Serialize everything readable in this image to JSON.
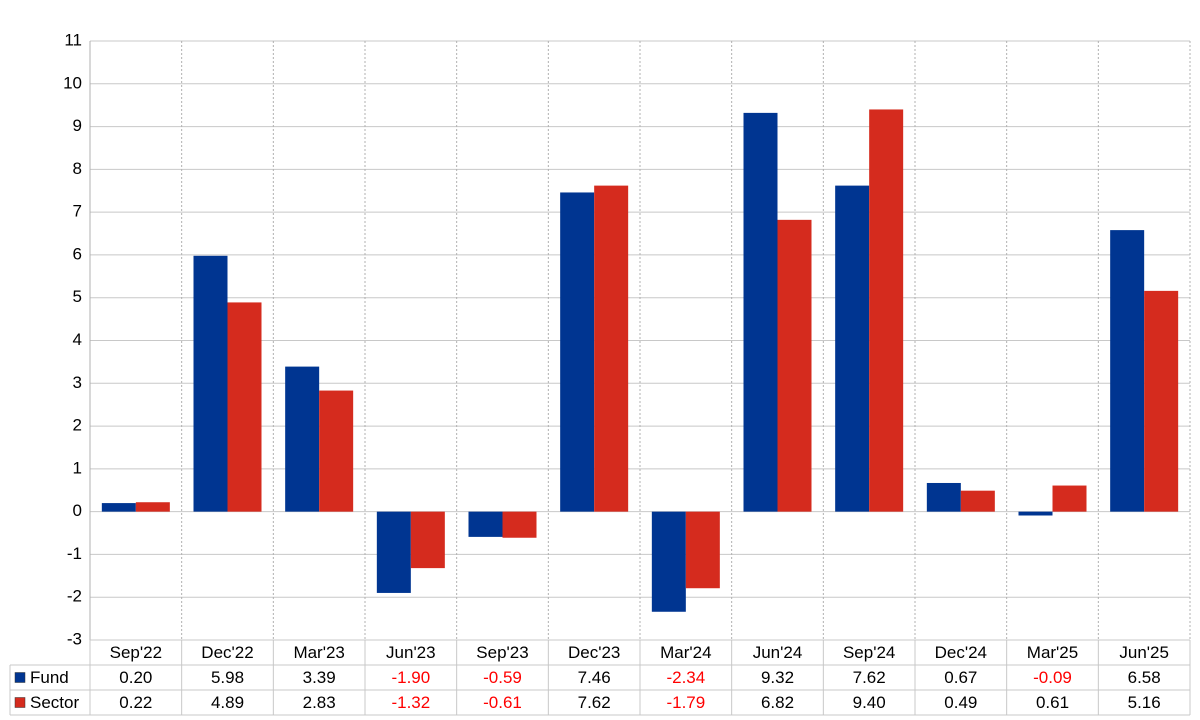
{
  "chart_data": {
    "type": "bar",
    "categories": [
      "Sep'22",
      "Dec'22",
      "Mar'23",
      "Jun'23",
      "Sep'23",
      "Dec'23",
      "Mar'24",
      "Jun'24",
      "Sep'24",
      "Dec'24",
      "Mar'25",
      "Jun'25"
    ],
    "series": [
      {
        "name": "Fund",
        "color": "#003591",
        "values": [
          0.2,
          5.98,
          3.39,
          -1.9,
          -0.59,
          7.46,
          -2.34,
          9.32,
          7.62,
          0.67,
          -0.09,
          6.58
        ],
        "value_labels": [
          "0.20",
          "5.98",
          "3.39",
          "-1.90",
          "-0.59",
          "7.46",
          "-2.34",
          "9.32",
          "7.62",
          "0.67",
          "-0.09",
          "6.58"
        ]
      },
      {
        "name": "Sector",
        "color": "#d52b1e",
        "values": [
          0.22,
          4.89,
          2.83,
          -1.32,
          -0.61,
          7.62,
          -1.79,
          6.82,
          9.4,
          0.49,
          0.61,
          5.16
        ],
        "value_labels": [
          "0.22",
          "4.89",
          "2.83",
          "-1.32",
          "-0.61",
          "7.62",
          "-1.79",
          "6.82",
          "9.40",
          "0.49",
          "0.61",
          "5.16"
        ]
      }
    ],
    "ylim": [
      -3,
      11
    ],
    "yticks": [
      -3,
      -2,
      -1,
      0,
      1,
      2,
      3,
      4,
      5,
      6,
      7,
      8,
      9,
      10,
      11
    ],
    "grid": true,
    "negative_color": "#ff0000"
  }
}
